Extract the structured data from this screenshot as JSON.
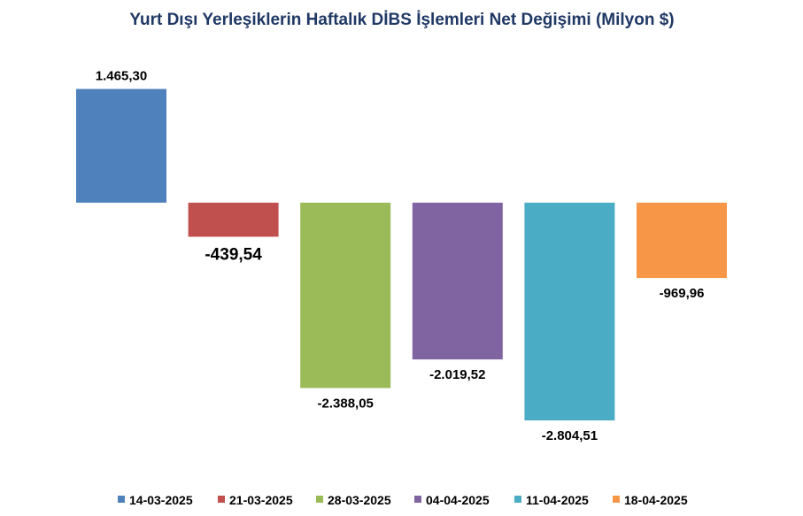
{
  "chart_data": {
    "type": "bar",
    "title": "Yurt Dışı Yerleşiklerin Haftalık DİBS İşlemleri Net Değişimi (Milyon $)",
    "xlabel": "",
    "ylabel": "",
    "grid": false,
    "legend_position": "bottom",
    "series": [
      {
        "name": "14-03-2025",
        "value": 1465.3,
        "label": "1.465,30",
        "color": "#4f81bd"
      },
      {
        "name": "21-03-2025",
        "value": -439.54,
        "label": "-439,54",
        "color": "#c0504d"
      },
      {
        "name": "28-03-2025",
        "value": -2388.05,
        "label": "-2.388,05",
        "color": "#9bbb59"
      },
      {
        "name": "04-04-2025",
        "value": -2019.52,
        "label": "-2.019,52",
        "color": "#8064a2"
      },
      {
        "name": "11-04-2025",
        "value": -2804.51,
        "label": "-2.804,51",
        "color": "#4bacc6"
      },
      {
        "name": "18-04-2025",
        "value": -969.96,
        "label": "-969,96",
        "color": "#f79646"
      }
    ]
  }
}
